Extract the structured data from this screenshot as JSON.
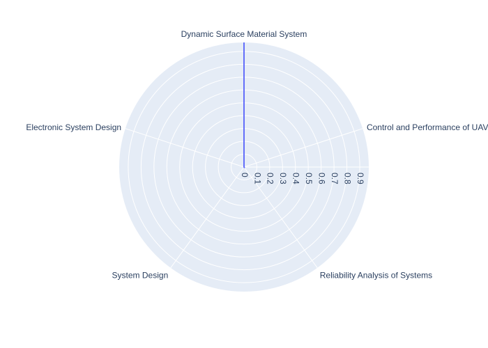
{
  "chart_data": {
    "type": "radar",
    "categories": [
      "Dynamic Surface Material System",
      "Control and Performance of UAVs",
      "Reliability Analysis of Systems",
      "System Design",
      "Electronic System Design"
    ],
    "series": [
      {
        "values": [
          0.97,
          0.0,
          0.005,
          0.0,
          0.0
        ]
      }
    ],
    "radial_ticks": [
      "0",
      "0.1",
      "0.2",
      "0.3",
      "0.4",
      "0.5",
      "0.6",
      "0.7",
      "0.8",
      "0.9"
    ],
    "rlim": [
      0,
      0.97
    ],
    "grid": true,
    "colors": {
      "polar_bg": "#e5ecf6",
      "grid": "#ffffff",
      "series": "#636efa",
      "text": "#2a3f5f"
    }
  }
}
